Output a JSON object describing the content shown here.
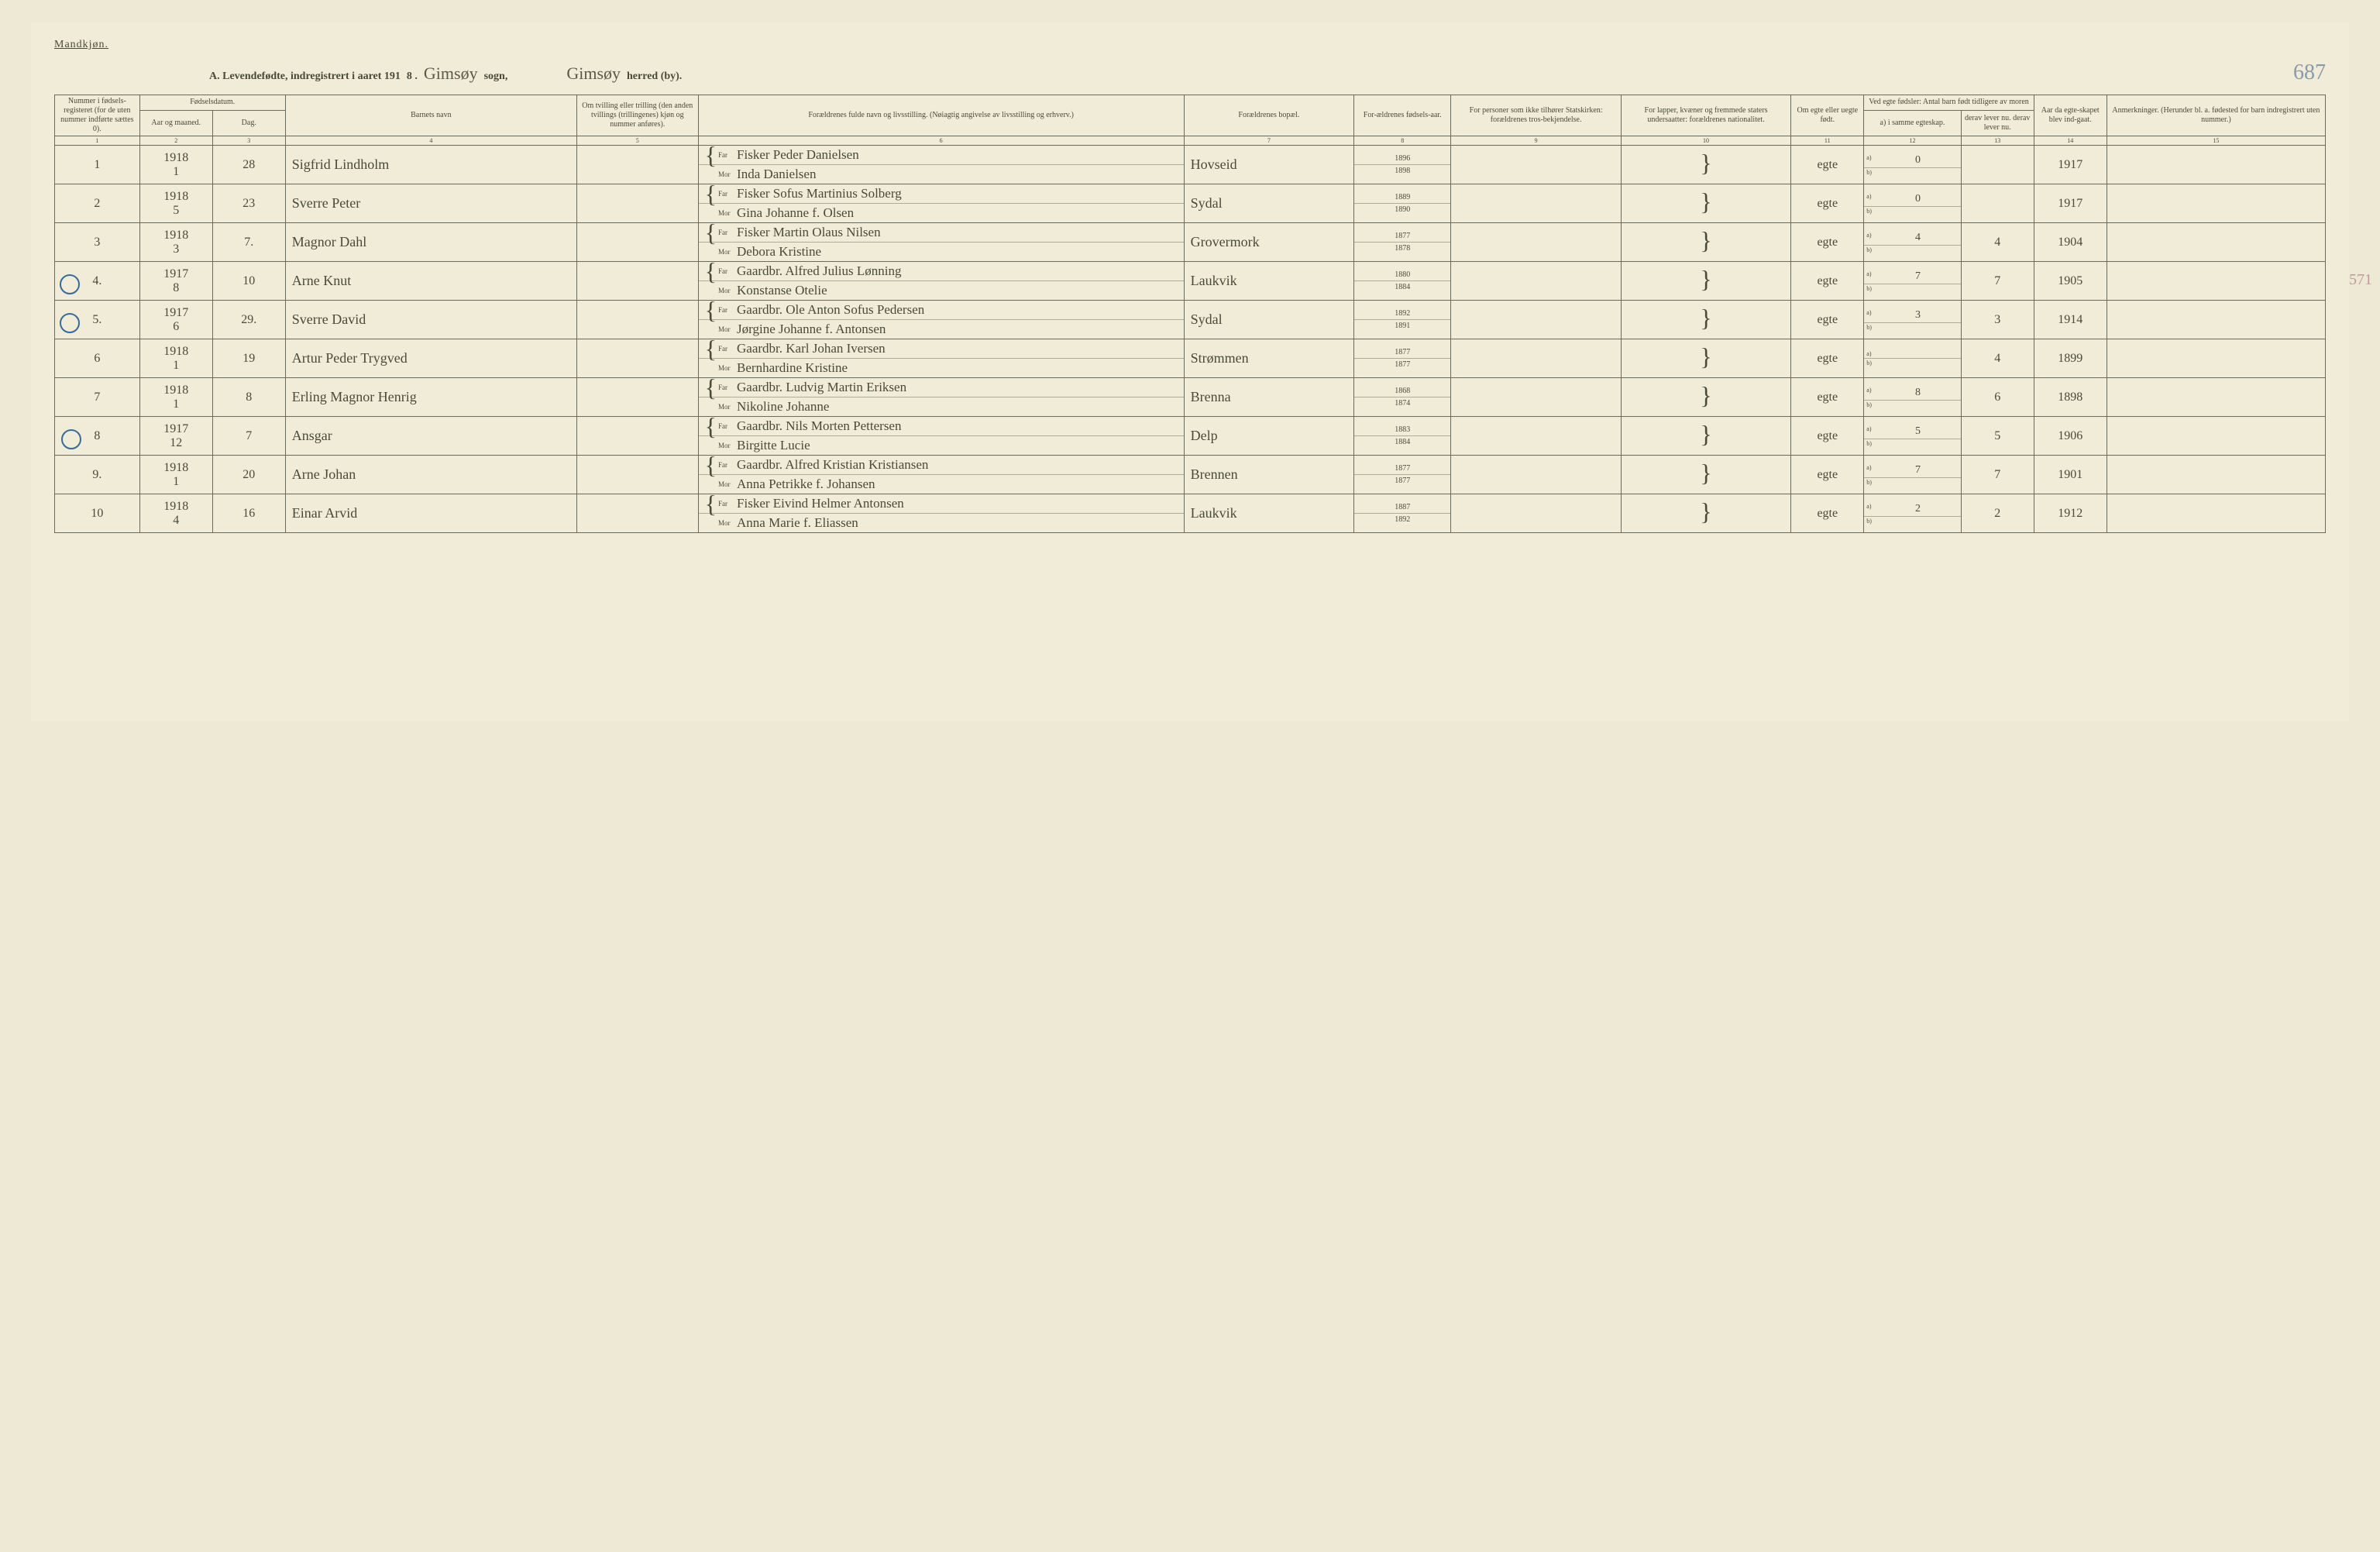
{
  "page": {
    "gender_label": "Mandkjøn.",
    "title_prefix": "A. Levendefødte, indregistrert i aaret 191",
    "year_suffix": "8 .",
    "sogn_name": "Gimsøy",
    "sogn_label": "sogn,",
    "herred_name": "Gimsøy",
    "herred_label": "herred (by).",
    "page_number": "687",
    "side_number": "571"
  },
  "headers": {
    "c1": "Nummer i fødsels-registeret (for de uten nummer indførte sættes 0).",
    "c2_top": "Fødselsdatum.",
    "c2a": "Aar og maaned.",
    "c2b": "Dag.",
    "c4": "Barnets navn",
    "c5": "Om tvilling eller trilling (den anden tvillings (trillingenes) kjøn og nummer anføres).",
    "c6": "Forældrenes fulde navn og livsstilling. (Nøiagtig angivelse av livsstilling og erhverv.)",
    "c7": "Forældrenes bopæl.",
    "c8": "For-ældrenes fødsels-aar.",
    "c9": "For personer som ikke tilhører Statskirken: forældrenes tros-bekjendelse.",
    "c10": "For lapper, kvæner og fremmede staters undersaatter: forældrenes nationalitet.",
    "c11": "Om egte eller uegte født.",
    "c12_top": "Ved egte fødsler: Antal barn født tidligere av moren",
    "c12a": "a) i samme egteskap.",
    "c12b": "b) i tidligere egteskap.",
    "c13": "derav lever nu. derav lever nu.",
    "c14": "Aar da egte-skapet blev ind-gaat.",
    "c15": "Anmerkninger. (Herunder bl. a. fødested for barn indregistrert uten nummer.)",
    "far": "Far",
    "mor": "Mor"
  },
  "colnums": [
    "1",
    "2",
    "3",
    "4",
    "5",
    "6",
    "7",
    "8",
    "9",
    "10",
    "11",
    "12",
    "13",
    "14",
    "15"
  ],
  "rows": [
    {
      "n": "1",
      "circle": false,
      "ym": "1918 / 1",
      "day": "28",
      "name": "Sigfrid Lindholm",
      "far": "Fisker Peder Danielsen",
      "mor": "Inda Danielsen",
      "res": "Hovseid",
      "fy": "1896",
      "my": "1898",
      "legit": "egte",
      "a": "0",
      "b": "",
      "c13": "",
      "c14": "1917"
    },
    {
      "n": "2",
      "circle": false,
      "ym": "1918 / 5",
      "day": "23",
      "name": "Sverre Peter",
      "far": "Fisker Sofus Martinius Solberg",
      "mor": "Gina Johanne f. Olsen",
      "res": "Sydal",
      "fy": "1889",
      "my": "1890",
      "legit": "egte",
      "a": "0",
      "b": "",
      "c13": "",
      "c14": "1917"
    },
    {
      "n": "3",
      "circle": false,
      "ym": "1918 / 3",
      "day": "7.",
      "name": "Magnor Dahl",
      "far": "Fisker Martin Olaus Nilsen",
      "mor": "Debora Kristine",
      "res": "Grovermork",
      "fy": "1877",
      "my": "1878",
      "legit": "egte",
      "a": "4",
      "b": "",
      "c13": "4",
      "c14": "1904"
    },
    {
      "n": "4.",
      "circle": true,
      "ym": "1917 / 8",
      "day": "10",
      "name": "Arne Knut",
      "far": "Gaardbr. Alfred Julius Lønning",
      "mor": "Konstanse Otelie",
      "res": "Laukvik",
      "fy": "1880",
      "my": "1884",
      "legit": "egte",
      "a": "7",
      "b": "",
      "c13": "7",
      "c14": "1905"
    },
    {
      "n": "5.",
      "circle": true,
      "ym": "1917 / 6",
      "day": "29.",
      "name": "Sverre David",
      "far": "Gaardbr. Ole Anton Sofus Pedersen",
      "mor": "Jørgine Johanne f. Antonsen",
      "res": "Sydal",
      "fy": "1892",
      "my": "1891",
      "legit": "egte",
      "a": "3",
      "b": "",
      "c13": "3",
      "c14": "1914"
    },
    {
      "n": "6",
      "circle": false,
      "ym": "1918 / 1",
      "day": "19",
      "name": "Artur Peder Trygved",
      "far": "Gaardbr. Karl Johan Iversen",
      "mor": "Bernhardine Kristine",
      "res": "Strømmen",
      "fy": "1877",
      "my": "1877",
      "legit": "egte",
      "a": "",
      "b": "",
      "c13": "4",
      "c14": "1899"
    },
    {
      "n": "7",
      "circle": false,
      "ym": "1918 / 1",
      "day": "8",
      "name": "Erling Magnor Henrig",
      "far": "Gaardbr. Ludvig Martin Eriksen",
      "mor": "Nikoline Johanne",
      "res": "Brenna",
      "fy": "1868",
      "my": "1874",
      "legit": "egte",
      "a": "8",
      "b": "",
      "c13": "6",
      "c14": "1898"
    },
    {
      "n": "8",
      "circle": true,
      "ym": "1917 / 12",
      "day": "7",
      "name": "Ansgar",
      "far": "Gaardbr. Nils Morten Pettersen",
      "mor": "Birgitte Lucie",
      "res": "Delp",
      "fy": "1883",
      "my": "1884",
      "legit": "egte",
      "a": "5",
      "b": "",
      "c13": "5",
      "c14": "1906"
    },
    {
      "n": "9.",
      "circle": false,
      "ym": "1918 / 1",
      "day": "20",
      "name": "Arne Johan",
      "far": "Gaardbr. Alfred Kristian Kristiansen",
      "mor": "Anna Petrikke f. Johansen",
      "res": "Brennen",
      "fy": "1877",
      "my": "1877",
      "legit": "egte",
      "a": "7",
      "b": "",
      "c13": "7",
      "c14": "1901"
    },
    {
      "n": "10",
      "circle": false,
      "ym": "1918 / 4",
      "day": "16",
      "name": "Einar Arvid",
      "far": "Fisker Eivind Helmer Antonsen",
      "mor": "Anna Marie f. Eliassen",
      "res": "Laukvik",
      "fy": "1887",
      "my": "1892",
      "legit": "egte",
      "a": "2",
      "b": "",
      "c13": "2",
      "c14": "1912"
    }
  ],
  "style": {
    "bg": "#ede9d4",
    "paper": "#f0ecd7",
    "border": "#6a6a5a",
    "ink": "#4a4a3a",
    "circle": "#3a6a9a",
    "pagenum_color": "#8a9aaa",
    "print_fontsize": 10,
    "hand_fontsize": 18
  }
}
